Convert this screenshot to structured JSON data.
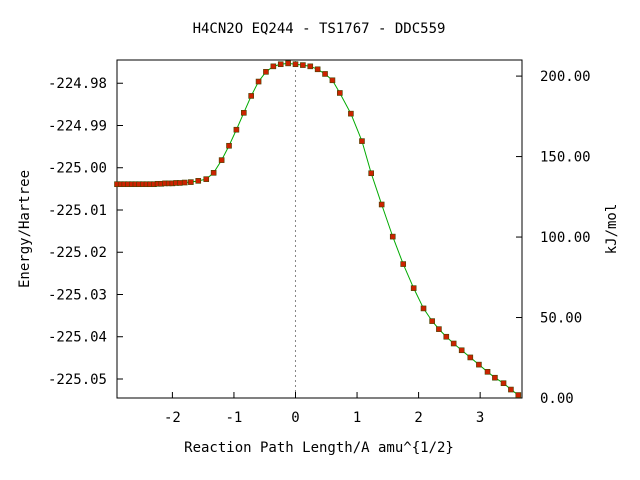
{
  "chart_data": {
    "type": "line",
    "title": "H4CN2O   EQ244 - TS1767 - DDC559",
    "xlabel": "Reaction Path Length/A amu^{1/2}",
    "ylabel": "Energy/Hartree",
    "y2label": "kJ/mol",
    "xlim": [
      -2.9,
      3.68
    ],
    "ylim": [
      -225.0545,
      -224.9745
    ],
    "y2lim": [
      0,
      210
    ],
    "x_ticks": [
      -2,
      -1,
      0,
      1,
      2,
      3
    ],
    "x_tick_labels": [
      "-2",
      "-1",
      "0",
      "1",
      "2",
      "3"
    ],
    "y_ticks": [
      -224.98,
      -224.99,
      -225.0,
      -225.01,
      -225.02,
      -225.03,
      -225.04,
      -225.05
    ],
    "y_tick_labels": [
      "-224.98",
      "-224.99",
      "-225.00",
      "-225.01",
      "-225.02",
      "-225.03",
      "-225.04",
      "-225.05"
    ],
    "y2_ticks": [
      0,
      50,
      100,
      150,
      200
    ],
    "y2_tick_labels": [
      "0.00",
      "50.00",
      "100.00",
      "150.00",
      "200.00"
    ],
    "ts_marker_x": 0,
    "line_color": "#00aa00",
    "point_color": "#cc2200",
    "point_edge_color": "#444400",
    "series": [
      {
        "x": [
          -2.9,
          -2.84,
          -2.78,
          -2.72,
          -2.66,
          -2.6,
          -2.54,
          -2.48,
          -2.42,
          -2.36,
          -2.3,
          -2.24,
          -2.18,
          -2.12,
          -2.06,
          -2.0,
          -1.94,
          -1.88,
          -1.8,
          -1.7,
          -1.58,
          -1.45,
          -1.33,
          -1.2,
          -1.08,
          -0.96,
          -0.84,
          -0.72,
          -0.6,
          -0.48,
          -0.36,
          -0.24,
          -0.12,
          0.0,
          0.12,
          0.24,
          0.36,
          0.48,
          0.6,
          0.72,
          0.9,
          1.08,
          1.23,
          1.4,
          1.58,
          1.75,
          1.92,
          2.08,
          2.22,
          2.33,
          2.45,
          2.57,
          2.7,
          2.84,
          2.98,
          3.12,
          3.24,
          3.38,
          3.5,
          3.62
        ],
        "values": [
          -225.0039,
          -225.0039,
          -225.0039,
          -225.0039,
          -225.0039,
          -225.0039,
          -225.0039,
          -225.0039,
          -225.0039,
          -225.0039,
          -225.0039,
          -225.0038,
          -225.0038,
          -225.0037,
          -225.0037,
          -225.0037,
          -225.0036,
          -225.0036,
          -225.0035,
          -225.0034,
          -225.0031,
          -225.0027,
          -225.0012,
          -224.9982,
          -224.9948,
          -224.991,
          -224.987,
          -224.983,
          -224.9796,
          -224.9773,
          -224.976,
          -224.9755,
          -224.9753,
          -224.9755,
          -224.9757,
          -224.976,
          -224.9767,
          -224.9778,
          -224.9793,
          -224.9823,
          -224.9872,
          -224.9937,
          -225.0013,
          -225.0087,
          -225.0163,
          -225.0228,
          -225.0285,
          -225.0333,
          -225.0363,
          -225.0382,
          -225.04,
          -225.0416,
          -225.0432,
          -225.0449,
          -225.0466,
          -225.0483,
          -225.0497,
          -225.051,
          -225.0525,
          -225.0538
        ]
      }
    ]
  }
}
